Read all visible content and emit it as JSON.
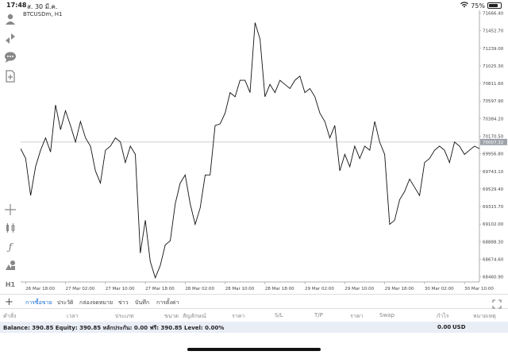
{
  "status": {
    "time": "17:48",
    "date": "ส. 30 มี.ค.",
    "battery": "75%",
    "battery_level": 0.75
  },
  "chart": {
    "symbol_label": "BTCUSDm, H1",
    "current_price": "70007.32",
    "hline_price": 70100
  },
  "icons": {
    "toolbar_top": [
      "account-icon",
      "trade-icon",
      "chat-icon",
      "add-document-icon"
    ],
    "toolbar_bottom": [
      "crosshair-icon",
      "indicator-icon",
      "function-icon",
      "objects-icon",
      "timeframe-icon"
    ]
  },
  "timeframe": "H1",
  "chart_data": {
    "type": "line",
    "title": "",
    "xlabel": "",
    "ylabel": "",
    "ylim": [
      68400,
      71700
    ],
    "y_ticks": [
      "71666.40",
      "71452.70",
      "71239.00",
      "71025.30",
      "70811.60",
      "70597.90",
      "70384.20",
      "70170.50",
      "69956.80",
      "69743.10",
      "69529.40",
      "69315.70",
      "69102.00",
      "68888.30",
      "68674.60",
      "68460.90"
    ],
    "x_tick_labels": [
      "26 Mar 18:00",
      "27 Mar 02:00",
      "27 Mar 10:00",
      "27 Mar 18:00",
      "28 Mar 02:00",
      "28 Mar 10:00",
      "28 Mar 18:00",
      "29 Mar 02:00",
      "29 Mar 10:00",
      "29 Mar 18:00",
      "30 Mar 02:00",
      "30 Mar 10:00"
    ],
    "x_ticks": [
      1,
      9,
      17,
      25,
      33,
      41,
      49,
      57,
      65,
      73,
      81,
      89
    ],
    "x_range": [
      0,
      92
    ],
    "series": [
      {
        "values": [
          70020,
          69900,
          69450,
          69800,
          70000,
          70150,
          69980,
          70550,
          70250,
          70480,
          70300,
          70100,
          70350,
          70150,
          70050,
          69750,
          69600,
          70000,
          70050,
          70150,
          70100,
          69850,
          70050,
          69950,
          68750,
          69150,
          68650,
          68450,
          68600,
          68850,
          68900,
          69350,
          69600,
          69700,
          69350,
          69100,
          69300,
          69700,
          69700,
          70300,
          70320,
          70450,
          70700,
          70650,
          70850,
          70850,
          70700,
          71550,
          71350,
          70650,
          70800,
          70700,
          70850,
          70800,
          70750,
          70850,
          70900,
          70700,
          70750,
          70650,
          70450,
          70350,
          70150,
          70300,
          69750,
          69950,
          69800,
          70050,
          69900,
          70050,
          70000,
          70350,
          70100,
          69950,
          69100,
          69150,
          69400,
          69500,
          69650,
          69550,
          69450,
          69850,
          69900,
          70000,
          70050,
          70000,
          69850,
          70100,
          70050,
          69950,
          70000,
          70050,
          70020
        ]
      }
    ]
  },
  "tabs": {
    "plus": "+",
    "items": [
      "การซื้อขาย",
      "ประวัติ",
      "กล่องจดหมาย",
      "ข่าว",
      "บันทึก",
      "การตั้งค่า"
    ],
    "active": 0
  },
  "columns": [
    "คำสั่ง",
    "เวลา",
    "ประเภท",
    "ขนาด",
    "สัญลักษณ์",
    "ราคา",
    "S/L",
    "T/P",
    "ราคา",
    "Swap",
    "กำไร",
    "หมายเหตุ"
  ],
  "balance": {
    "text": "Balance: 390.85 Equity: 390.85 หลักประกัน: 0.00 ฟรี: 390.85 Level: 0.00%",
    "profit": "0.00",
    "currency": "USD"
  },
  "colors": {
    "accent": "#1a6fd1",
    "line": "#111111",
    "price_tag_bg": "#9ea3aa"
  }
}
